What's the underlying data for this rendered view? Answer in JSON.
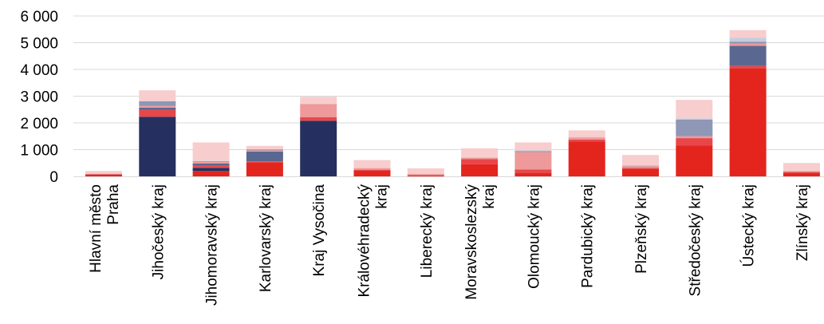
{
  "chart_data": {
    "type": "bar",
    "stacked": true,
    "categories": [
      "Hlavní město Praha",
      "Jihočeský kraj",
      "Jihomoravský kraj",
      "Karlovarský kraj",
      "Kraj Vysočina",
      "Královéhradecký kraj",
      "Liberecký kraj",
      "Moravskoslezský kraj",
      "Olomoucký kraj",
      "Pardubický kraj",
      "Plzeňský kraj",
      "Středočeský kraj",
      "Ústecký kraj",
      "Zlínský kraj"
    ],
    "category_label_lines": [
      [
        "Hlavní město",
        "Praha"
      ],
      [
        "Jihočeský kraj"
      ],
      [
        "Jihomoravský kraj"
      ],
      [
        "Karlovarský kraj"
      ],
      [
        "Kraj Vysočina"
      ],
      [
        "Královéhradecký",
        "kraj"
      ],
      [
        "Liberecký kraj"
      ],
      [
        "Moravskoslezský",
        "kraj"
      ],
      [
        "Olomoucký kraj"
      ],
      [
        "Pardubický kraj"
      ],
      [
        "Plzeňský kraj"
      ],
      [
        "Středočeský kraj"
      ],
      [
        "Ústecký kraj"
      ],
      [
        "Zlínský kraj"
      ]
    ],
    "series": [
      {
        "color": "#E3251E",
        "values": [
          60,
          0,
          200,
          530,
          0,
          220,
          40,
          450,
          120,
          1300,
          280,
          1150,
          4050,
          130
        ]
      },
      {
        "color": "#253060",
        "values": [
          0,
          2230,
          120,
          0,
          2080,
          0,
          0,
          0,
          0,
          0,
          0,
          0,
          0,
          0
        ]
      },
      {
        "color": "#E8474A",
        "values": [
          20,
          250,
          80,
          30,
          130,
          30,
          10,
          200,
          140,
          80,
          40,
          280,
          80,
          40
        ]
      },
      {
        "color": "#5A6891",
        "values": [
          0,
          90,
          80,
          370,
          0,
          0,
          0,
          0,
          0,
          0,
          0,
          0,
          750,
          0
        ]
      },
      {
        "color": "#EE9A9A",
        "values": [
          20,
          60,
          70,
          40,
          500,
          60,
          40,
          50,
          650,
          80,
          60,
          70,
          80,
          30
        ]
      },
      {
        "color": "#8E97B5",
        "values": [
          0,
          180,
          20,
          40,
          0,
          0,
          0,
          0,
          30,
          0,
          20,
          620,
          80,
          0
        ]
      },
      {
        "color": "#C6CCDC",
        "values": [
          0,
          10,
          20,
          0,
          0,
          0,
          10,
          0,
          30,
          0,
          0,
          50,
          150,
          0
        ]
      },
      {
        "color": "#F8CDCD",
        "values": [
          100,
          400,
          680,
          130,
          270,
          300,
          200,
          350,
          300,
          260,
          400,
          690,
          280,
          300
        ]
      }
    ],
    "y_ticks": [
      0,
      1000,
      2000,
      3000,
      4000,
      5000,
      6000
    ],
    "y_tick_labels": [
      "0",
      "1 000",
      "2 000",
      "3 000",
      "4 000",
      "5 000",
      "6 000"
    ],
    "ylim": [
      0,
      6000
    ],
    "grid": true,
    "legend": "none"
  }
}
